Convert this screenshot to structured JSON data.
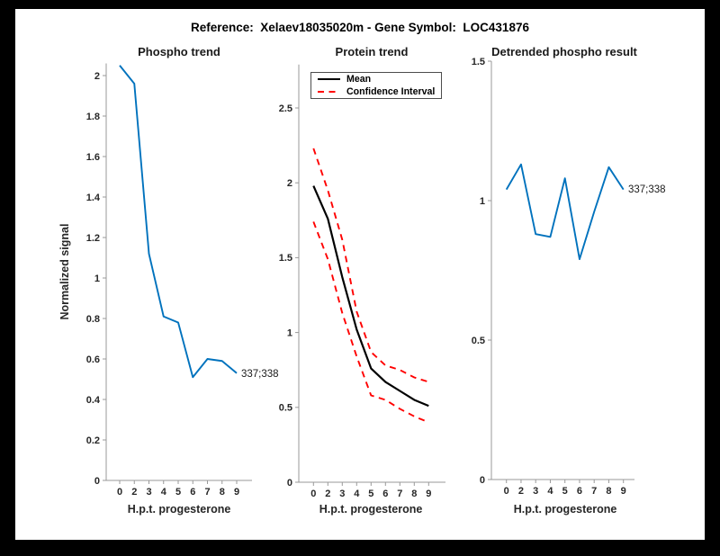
{
  "figure": {
    "title": "Reference:  Xelaev18035020m - Gene Symbol:  LOC431876",
    "frame_color": "#000000",
    "panel_color": "#ffffff",
    "axis_color": "#999999",
    "text_color": "#262626"
  },
  "chart_data": [
    {
      "type": "line",
      "title": "Phospho trend",
      "xlabel": "H.p.t. progesterone",
      "ylabel": "Normalized signal",
      "x_scale": "categorical-equal-spacing",
      "x_values": [
        0,
        2,
        3,
        4,
        5,
        6,
        7,
        8,
        9
      ],
      "x_tick_labels": [
        "0",
        "2",
        "3",
        "4",
        "5",
        "6",
        "7",
        "8",
        "9"
      ],
      "y_tick_values": [
        0,
        0.2,
        0.4,
        0.6,
        0.8,
        1,
        1.2,
        1.4,
        1.6,
        1.8,
        2
      ],
      "y_tick_labels": [
        "0",
        "0.2",
        "0.4",
        "0.6",
        "0.8",
        "1",
        "1.2",
        "1.4",
        "1.6",
        "1.8",
        "2"
      ],
      "ylim": [
        0,
        2.06
      ],
      "grid": false,
      "series": [
        {
          "name": "phospho-signal",
          "color": "#0072BD",
          "line_style": "solid",
          "values": [
            2.05,
            1.96,
            1.12,
            0.81,
            0.78,
            0.51,
            0.6,
            0.59,
            0.53
          ]
        }
      ],
      "end_label": "337;338"
    },
    {
      "type": "line",
      "title": "Protein trend",
      "xlabel": "H.p.t. progesterone",
      "ylabel": "",
      "x_scale": "categorical-equal-spacing",
      "x_values": [
        0,
        2,
        3,
        4,
        5,
        6,
        7,
        8,
        9
      ],
      "x_tick_labels": [
        "0",
        "2",
        "3",
        "4",
        "5",
        "6",
        "7",
        "8",
        "9"
      ],
      "y_tick_values": [
        0,
        0.5,
        1,
        1.5,
        2,
        2.5
      ],
      "y_tick_labels": [
        "0",
        "0.5",
        "1",
        "1.5",
        "2",
        "2.5"
      ],
      "ylim": [
        0,
        2.79
      ],
      "grid": false,
      "legend": [
        {
          "label": "Mean",
          "color": "#000000",
          "line_style": "solid"
        },
        {
          "label": "Confidence Interval",
          "color": "#ff0000",
          "line_style": "dashed"
        }
      ],
      "legend_position": "northwest",
      "series": [
        {
          "name": "ci-upper",
          "color": "#ff0000",
          "line_style": "dashed",
          "values": [
            2.23,
            1.95,
            1.62,
            1.14,
            0.87,
            0.78,
            0.75,
            0.7,
            0.67
          ]
        },
        {
          "name": "ci-lower",
          "color": "#ff0000",
          "line_style": "dashed",
          "values": [
            1.74,
            1.49,
            1.13,
            0.84,
            0.58,
            0.55,
            0.49,
            0.44,
            0.4
          ]
        },
        {
          "name": "mean",
          "color": "#000000",
          "line_style": "solid",
          "values": [
            1.98,
            1.76,
            1.37,
            1.02,
            0.76,
            0.67,
            0.61,
            0.55,
            0.51
          ]
        }
      ]
    },
    {
      "type": "line",
      "title": "Detrended phospho result",
      "xlabel": "H.p.t. progesterone",
      "ylabel": "",
      "x_scale": "categorical-equal-spacing",
      "x_values": [
        0,
        2,
        3,
        4,
        5,
        6,
        7,
        8,
        9
      ],
      "x_tick_labels": [
        "0",
        "2",
        "3",
        "4",
        "5",
        "6",
        "7",
        "8",
        "9"
      ],
      "y_tick_values": [
        0,
        0.5,
        1,
        1.5
      ],
      "y_tick_labels": [
        "0",
        "0.5",
        "1",
        "1.5"
      ],
      "ylim": [
        0,
        1.5
      ],
      "grid": false,
      "series": [
        {
          "name": "detrended-signal",
          "color": "#0072BD",
          "line_style": "solid",
          "values": [
            1.04,
            1.13,
            0.88,
            0.87,
            1.08,
            0.79,
            0.96,
            1.12,
            1.04
          ]
        }
      ],
      "end_label": "337;338"
    }
  ]
}
